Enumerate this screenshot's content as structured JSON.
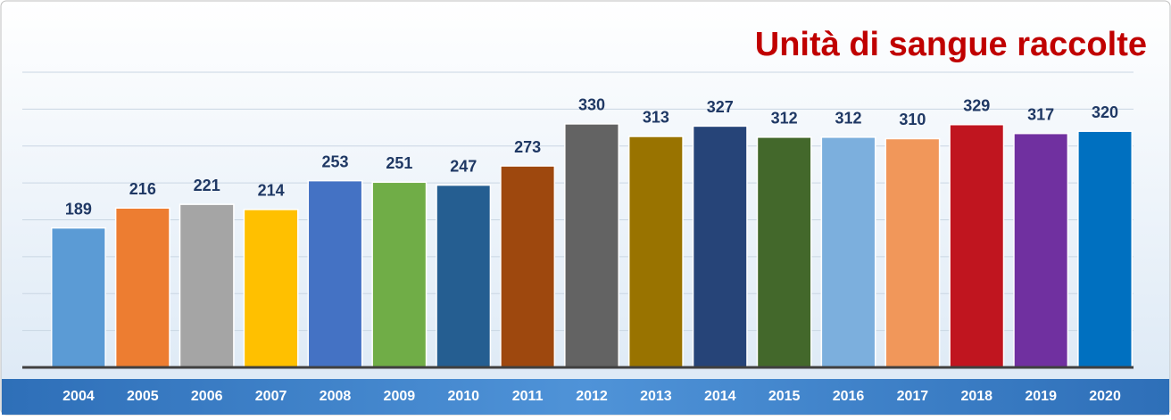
{
  "chart_data": {
    "type": "bar",
    "title": "Unità di sangue raccolte",
    "categories": [
      "2004",
      "2005",
      "2006",
      "2007",
      "2008",
      "2009",
      "2010",
      "2011",
      "2012",
      "2013",
      "2014",
      "2015",
      "2016",
      "2017",
      "2018",
      "2019",
      "2020"
    ],
    "values": [
      189,
      216,
      221,
      214,
      253,
      251,
      247,
      273,
      330,
      313,
      327,
      312,
      312,
      310,
      329,
      317,
      320
    ],
    "colors": [
      "#5b9bd5",
      "#ed7d31",
      "#a5a5a5",
      "#ffc000",
      "#4472c4",
      "#70ad47",
      "#255e91",
      "#9e480e",
      "#636363",
      "#997300",
      "#264478",
      "#43682b",
      "#7cafdd",
      "#f1975a",
      "#c0151f",
      "#7030a0",
      "#0070c0"
    ],
    "ylim": [
      0,
      400
    ],
    "yticks": [
      0,
      50,
      100,
      150,
      200,
      250,
      300,
      350,
      400
    ],
    "grid": true
  }
}
